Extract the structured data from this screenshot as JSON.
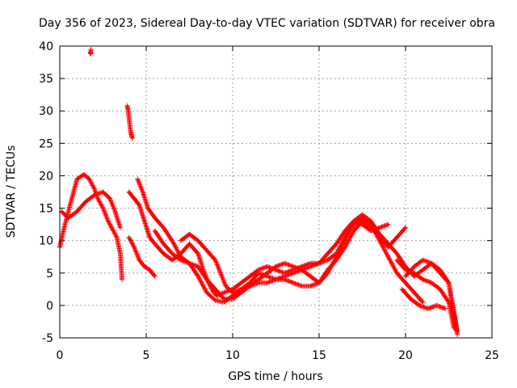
{
  "chart_data": {
    "type": "scatter",
    "title": "Day 356 of 2023, Sidereal Day-to-day VTEC variation (SDTVAR) for receiver obra",
    "xlabel": "GPS time / hours",
    "ylabel": "SDTVAR / TECUs",
    "xlim": [
      0,
      25
    ],
    "ylim": [
      -5,
      40
    ],
    "xticks": [
      0,
      5,
      10,
      15,
      20,
      25
    ],
    "yticks": [
      -5,
      0,
      5,
      10,
      15,
      20,
      25,
      30,
      35,
      40
    ],
    "grid": true,
    "marker": "+",
    "color": "#ff0000",
    "series": [
      {
        "name": "track-1",
        "points": [
          [
            0.0,
            9.0
          ],
          [
            0.3,
            12.5
          ],
          [
            0.6,
            15.5
          ],
          [
            0.8,
            17.5
          ],
          [
            1.0,
            19.5
          ],
          [
            1.4,
            20.2
          ],
          [
            1.7,
            19.5
          ],
          [
            2.0,
            18.0
          ],
          [
            2.2,
            16.5
          ],
          [
            2.5,
            15.0
          ],
          [
            2.8,
            13.0
          ],
          [
            3.1,
            11.5
          ],
          [
            3.3,
            10.5
          ],
          [
            3.5,
            8.0
          ],
          [
            3.6,
            4.0
          ]
        ]
      },
      {
        "name": "track-2",
        "points": [
          [
            0.1,
            14.5
          ],
          [
            0.5,
            13.5
          ],
          [
            1.0,
            14.5
          ],
          [
            1.5,
            16.0
          ],
          [
            2.0,
            17.0
          ],
          [
            2.5,
            17.5
          ],
          [
            2.9,
            16.5
          ],
          [
            3.2,
            14.5
          ],
          [
            3.5,
            12.0
          ]
        ]
      },
      {
        "name": "outlier-cluster-1",
        "points": [
          [
            1.8,
            39.5
          ],
          [
            1.8,
            38.8
          ],
          [
            1.75,
            39.0
          ]
        ]
      },
      {
        "name": "outlier-cluster-2",
        "points": [
          [
            3.9,
            30.8
          ],
          [
            3.95,
            30.2
          ],
          [
            4.1,
            26.8
          ],
          [
            4.15,
            26.2
          ],
          [
            4.2,
            25.8
          ]
        ]
      },
      {
        "name": "track-3",
        "points": [
          [
            4.0,
            17.5
          ],
          [
            4.3,
            16.5
          ],
          [
            4.6,
            15.5
          ],
          [
            4.9,
            13.0
          ],
          [
            5.2,
            10.5
          ],
          [
            5.5,
            9.5
          ],
          [
            6.0,
            8.0
          ],
          [
            6.5,
            7.0
          ],
          [
            7.0,
            8.0
          ],
          [
            7.5,
            9.5
          ],
          [
            8.0,
            8.0
          ],
          [
            8.3,
            5.5
          ],
          [
            8.6,
            3.5
          ],
          [
            8.9,
            2.0
          ],
          [
            9.1,
            1.5
          ],
          [
            9.5,
            2.0
          ],
          [
            10.0,
            2.5
          ],
          [
            10.5,
            3.5
          ],
          [
            11.0,
            4.5
          ],
          [
            11.5,
            5.5
          ],
          [
            12.0,
            6.0
          ],
          [
            12.5,
            5.5
          ],
          [
            13.0,
            5.0
          ],
          [
            13.5,
            5.5
          ],
          [
            14.0,
            6.0
          ],
          [
            14.5,
            6.5
          ],
          [
            15.0,
            6.5
          ],
          [
            15.5,
            7.0
          ],
          [
            16.0,
            8.0
          ],
          [
            16.5,
            10.5
          ],
          [
            17.0,
            12.5
          ],
          [
            17.5,
            13.5
          ],
          [
            18.0,
            12.5
          ],
          [
            18.5,
            10.0
          ],
          [
            19.0,
            7.5
          ],
          [
            19.5,
            5.0
          ],
          [
            20.0,
            3.5
          ],
          [
            20.5,
            2.0
          ],
          [
            21.0,
            0.5
          ]
        ]
      },
      {
        "name": "track-4",
        "points": [
          [
            4.0,
            10.5
          ],
          [
            4.3,
            9.0
          ],
          [
            4.6,
            7.0
          ],
          [
            4.9,
            6.0
          ],
          [
            5.2,
            5.5
          ],
          [
            5.5,
            4.5
          ]
        ]
      },
      {
        "name": "track-5",
        "points": [
          [
            4.5,
            19.5
          ],
          [
            4.8,
            17.5
          ],
          [
            5.1,
            15.0
          ],
          [
            5.5,
            13.5
          ],
          [
            6.0,
            12.0
          ],
          [
            6.5,
            10.0
          ],
          [
            7.0,
            7.5
          ],
          [
            7.5,
            6.5
          ],
          [
            8.0,
            6.0
          ],
          [
            8.5,
            4.0
          ],
          [
            9.0,
            2.5
          ],
          [
            9.5,
            1.0
          ],
          [
            10.0,
            1.0
          ],
          [
            10.5,
            2.0
          ],
          [
            11.0,
            3.0
          ],
          [
            11.5,
            4.0
          ],
          [
            12.0,
            5.0
          ],
          [
            12.5,
            6.0
          ],
          [
            13.0,
            6.5
          ],
          [
            13.5,
            6.0
          ],
          [
            14.0,
            5.5
          ],
          [
            14.5,
            4.5
          ],
          [
            15.0,
            3.5
          ],
          [
            15.5,
            5.0
          ],
          [
            16.0,
            7.5
          ],
          [
            16.5,
            10.0
          ],
          [
            17.0,
            13.0
          ],
          [
            17.5,
            14.0
          ],
          [
            18.0,
            13.0
          ],
          [
            18.5,
            11.0
          ],
          [
            19.0,
            9.5
          ],
          [
            19.5,
            8.0
          ],
          [
            20.0,
            6.0
          ],
          [
            20.5,
            4.5
          ],
          [
            21.0,
            5.5
          ],
          [
            21.5,
            6.5
          ],
          [
            22.0,
            5.5
          ],
          [
            22.5,
            3.5
          ],
          [
            23.0,
            -4.5
          ]
        ]
      },
      {
        "name": "track-6",
        "points": [
          [
            5.5,
            11.5
          ],
          [
            6.0,
            9.5
          ],
          [
            6.5,
            8.0
          ],
          [
            7.0,
            7.0
          ],
          [
            7.5,
            6.5
          ],
          [
            8.0,
            4.5
          ],
          [
            8.5,
            2.0
          ],
          [
            9.0,
            0.8
          ],
          [
            9.5,
            0.5
          ],
          [
            10.0,
            1.5
          ],
          [
            10.5,
            2.5
          ],
          [
            11.0,
            3.5
          ],
          [
            11.5,
            5.0
          ],
          [
            12.0,
            4.5
          ],
          [
            12.5,
            4.0
          ],
          [
            13.0,
            4.5
          ],
          [
            13.5,
            5.0
          ],
          [
            14.0,
            5.5
          ],
          [
            14.5,
            6.0
          ],
          [
            15.0,
            6.5
          ],
          [
            15.5,
            8.0
          ],
          [
            16.0,
            9.5
          ],
          [
            16.5,
            11.5
          ],
          [
            17.0,
            13.0
          ],
          [
            17.5,
            12.5
          ],
          [
            18.0,
            11.5
          ],
          [
            18.5,
            12.0
          ],
          [
            19.0,
            12.5
          ]
        ]
      },
      {
        "name": "track-7",
        "points": [
          [
            7.0,
            10.0
          ],
          [
            7.5,
            11.0
          ],
          [
            8.0,
            10.0
          ],
          [
            8.5,
            8.5
          ],
          [
            9.0,
            7.0
          ],
          [
            9.3,
            5.0
          ],
          [
            9.6,
            3.0
          ],
          [
            10.0,
            2.0
          ],
          [
            10.5,
            2.5
          ],
          [
            11.0,
            3.0
          ],
          [
            11.5,
            3.5
          ],
          [
            12.0,
            3.5
          ],
          [
            12.5,
            4.0
          ],
          [
            13.0,
            4.0
          ],
          [
            13.5,
            3.5
          ],
          [
            14.0,
            3.0
          ],
          [
            14.5,
            3.0
          ],
          [
            15.0,
            3.5
          ],
          [
            15.5,
            5.5
          ],
          [
            16.0,
            7.0
          ],
          [
            16.5,
            9.0
          ],
          [
            17.0,
            11.5
          ],
          [
            17.5,
            13.0
          ],
          [
            18.0,
            12.0
          ],
          [
            18.5,
            10.5
          ],
          [
            19.0,
            9.0
          ],
          [
            19.5,
            10.5
          ],
          [
            20.0,
            12.0
          ]
        ]
      },
      {
        "name": "track-8",
        "points": [
          [
            19.5,
            7.0
          ],
          [
            20.0,
            5.5
          ],
          [
            20.5,
            5.0
          ],
          [
            21.0,
            4.0
          ],
          [
            21.5,
            3.5
          ],
          [
            22.0,
            2.5
          ],
          [
            22.5,
            0.5
          ],
          [
            22.8,
            -3.5
          ]
        ]
      },
      {
        "name": "track-9",
        "points": [
          [
            20.0,
            4.5
          ],
          [
            20.5,
            6.0
          ],
          [
            21.0,
            7.0
          ],
          [
            21.5,
            6.5
          ],
          [
            22.0,
            5.0
          ],
          [
            22.5,
            3.5
          ],
          [
            23.0,
            -4.0
          ]
        ]
      },
      {
        "name": "track-10",
        "points": [
          [
            19.8,
            2.5
          ],
          [
            20.3,
            1.0
          ],
          [
            20.8,
            0.0
          ],
          [
            21.3,
            -0.5
          ],
          [
            21.8,
            0.0
          ],
          [
            22.3,
            -0.5
          ]
        ]
      }
    ]
  }
}
